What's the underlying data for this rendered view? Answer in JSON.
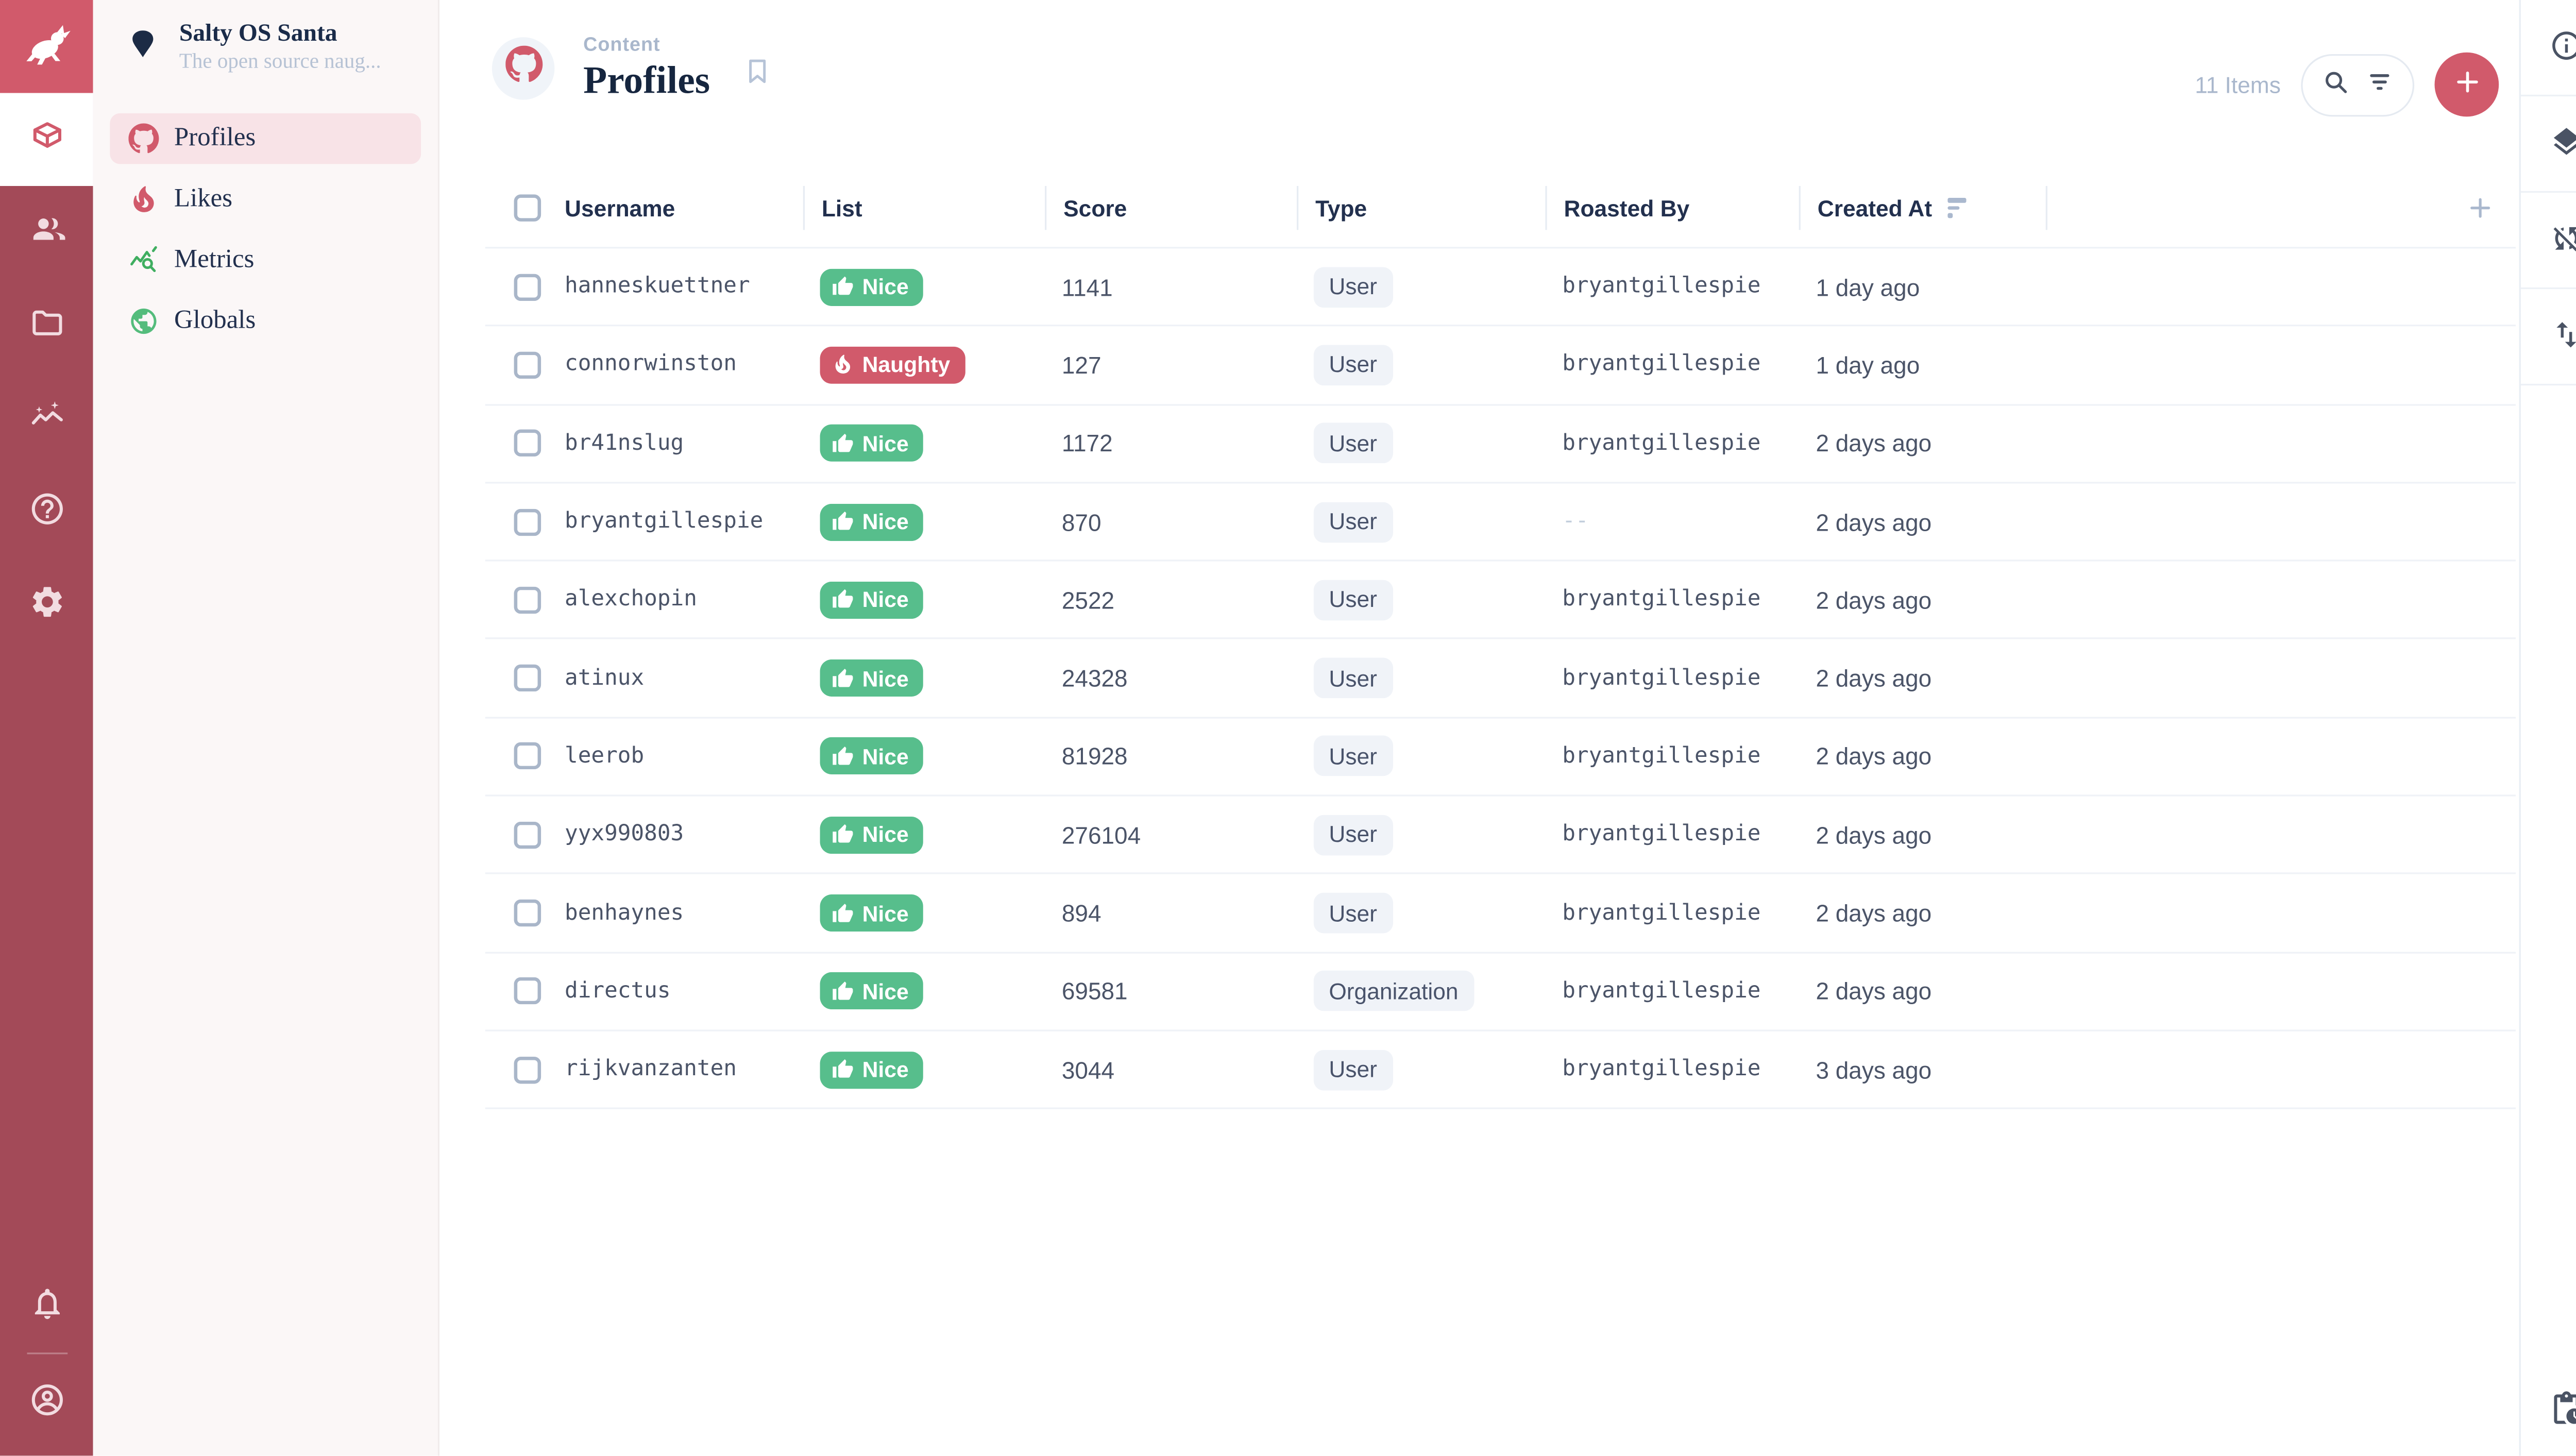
{
  "project": {
    "name": "Salty OS Santa",
    "description": "The open source naug...",
    "logo_icon": "rabbit-icon",
    "status_icon": "shield-icon"
  },
  "module_bar": {
    "top": [
      {
        "name": "content-module",
        "icon": "box-icon",
        "active": true
      },
      {
        "name": "users-module",
        "icon": "users-icon",
        "active": false
      },
      {
        "name": "files-module",
        "icon": "folder-icon",
        "active": false
      },
      {
        "name": "insights-module",
        "icon": "insights-icon",
        "active": false
      },
      {
        "name": "docs-module",
        "icon": "help-icon",
        "active": false
      },
      {
        "name": "settings-module",
        "icon": "settings-icon",
        "active": false
      }
    ],
    "bottom": [
      {
        "name": "notifications",
        "icon": "bell-icon"
      },
      {
        "name": "account",
        "icon": "account-icon"
      }
    ]
  },
  "nav": {
    "items": [
      {
        "label": "Profiles",
        "icon": "github-icon",
        "icon_color": "#D15A6B",
        "active": true
      },
      {
        "label": "Likes",
        "icon": "flame-icon",
        "icon_color": "#D15A6B",
        "active": false
      },
      {
        "label": "Metrics",
        "icon": "metrics-icon",
        "icon_color": "#3FAE60",
        "active": false
      },
      {
        "label": "Globals",
        "icon": "globe-icon",
        "icon_color": "#54BC7C",
        "active": false
      }
    ]
  },
  "header": {
    "breadcrumb": "Content",
    "title": "Profiles",
    "collection_icon": "github-icon",
    "items_count": "11 Items"
  },
  "table": {
    "columns": [
      {
        "label": "Username"
      },
      {
        "label": "List"
      },
      {
        "label": "Score"
      },
      {
        "label": "Type"
      },
      {
        "label": "Roasted By"
      },
      {
        "label": "Created At",
        "sorted": true
      }
    ],
    "badges": {
      "Nice": {
        "color": "#57BE8C",
        "icon": "thumbs-up-icon"
      },
      "Naughty": {
        "color": "#D15A6B",
        "icon": "flame-icon"
      }
    },
    "rows": [
      {
        "username": "hanneskuettner",
        "list": "Nice",
        "score": "1141",
        "type": "User",
        "roasted_by": "bryantgillespie",
        "created_at": "1 day ago"
      },
      {
        "username": "connorwinston",
        "list": "Naughty",
        "score": "127",
        "type": "User",
        "roasted_by": "bryantgillespie",
        "created_at": "1 day ago"
      },
      {
        "username": "br41nslug",
        "list": "Nice",
        "score": "1172",
        "type": "User",
        "roasted_by": "bryantgillespie",
        "created_at": "2 days ago"
      },
      {
        "username": "bryantgillespie",
        "list": "Nice",
        "score": "870",
        "type": "User",
        "roasted_by": "--",
        "created_at": "2 days ago"
      },
      {
        "username": "alexchopin",
        "list": "Nice",
        "score": "2522",
        "type": "User",
        "roasted_by": "bryantgillespie",
        "created_at": "2 days ago"
      },
      {
        "username": "atinux",
        "list": "Nice",
        "score": "24328",
        "type": "User",
        "roasted_by": "bryantgillespie",
        "created_at": "2 days ago"
      },
      {
        "username": "leerob",
        "list": "Nice",
        "score": "81928",
        "type": "User",
        "roasted_by": "bryantgillespie",
        "created_at": "2 days ago"
      },
      {
        "username": "yyx990803",
        "list": "Nice",
        "score": "276104",
        "type": "User",
        "roasted_by": "bryantgillespie",
        "created_at": "2 days ago"
      },
      {
        "username": "benhaynes",
        "list": "Nice",
        "score": "894",
        "type": "User",
        "roasted_by": "bryantgillespie",
        "created_at": "2 days ago"
      },
      {
        "username": "directus",
        "list": "Nice",
        "score": "69581",
        "type": "Organization",
        "roasted_by": "bryantgillespie",
        "created_at": "2 days ago"
      },
      {
        "username": "rijkvanzanten",
        "list": "Nice",
        "score": "3044",
        "type": "User",
        "roasted_by": "bryantgillespie",
        "created_at": "3 days ago"
      }
    ]
  },
  "right_sidebar": {
    "items": [
      {
        "name": "info",
        "icon": "info-icon"
      },
      {
        "name": "layout-options",
        "icon": "layers-icon"
      },
      {
        "name": "auto-refresh-disabled",
        "icon": "sync-disabled-icon"
      },
      {
        "name": "import-export",
        "icon": "import-export-icon"
      }
    ],
    "bottom": {
      "name": "activity",
      "icon": "clipboard-clock-icon"
    }
  },
  "colors": {
    "accent": "#D15A6B",
    "module_bar_bg": "#A34A58",
    "nav_active_bg": "#F8E3E7",
    "badge_nice": "#57BE8C",
    "badge_naughty": "#D15A6B",
    "chip_bg": "#F0F3F8",
    "title_text": "#16263F",
    "muted_text": "#A9B7CC",
    "body_text": "#4B5468"
  }
}
